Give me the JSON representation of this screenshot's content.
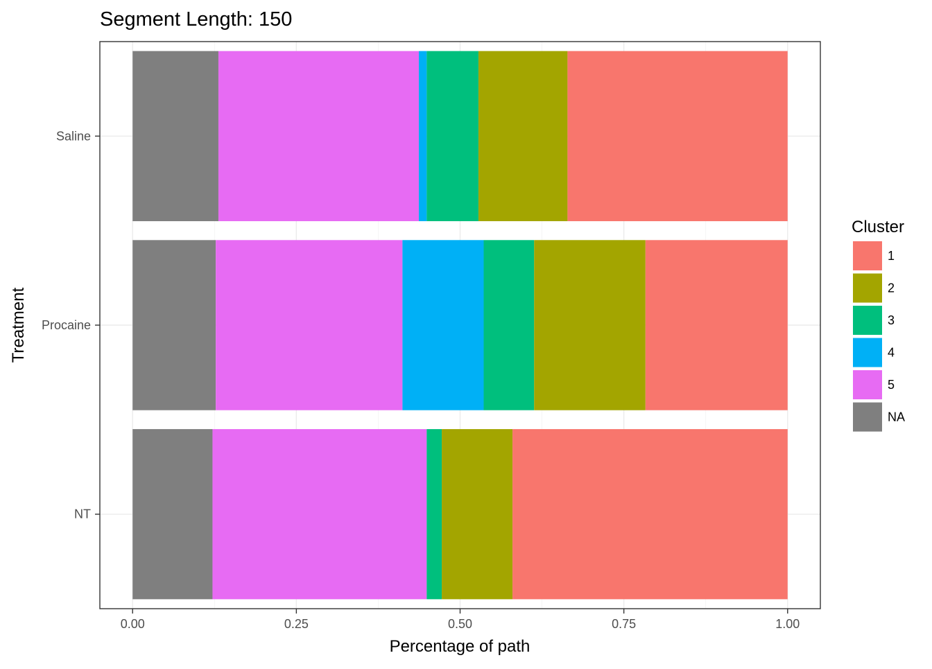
{
  "chart_data": {
    "type": "bar",
    "orientation": "horizontal",
    "stacked": true,
    "title": "Segment Length: 150",
    "xlabel": "Percentage of path",
    "ylabel": "Treatment",
    "xlim": [
      -0.05,
      1.05
    ],
    "x_ticks": [
      0,
      0.25,
      0.5,
      0.75,
      1.0
    ],
    "x_tick_labels": [
      "0.00",
      "0.25",
      "0.50",
      "0.75",
      "1.00"
    ],
    "categories": [
      "NT",
      "Procaine",
      "Saline"
    ],
    "stack_order": [
      "NA",
      "5",
      "4",
      "3",
      "2",
      "1"
    ],
    "series": [
      {
        "name": "1",
        "color": "#F8766D",
        "values": [
          0.42,
          0.217,
          0.336
        ]
      },
      {
        "name": "2",
        "color": "#A3A500",
        "values": [
          0.108,
          0.17,
          0.136
        ]
      },
      {
        "name": "3",
        "color": "#00BF7D",
        "values": [
          0.023,
          0.077,
          0.079
        ]
      },
      {
        "name": "4",
        "color": "#00B0F6",
        "values": [
          0.0,
          0.124,
          0.012
        ]
      },
      {
        "name": "5",
        "color": "#E76BF3",
        "values": [
          0.327,
          0.285,
          0.306
        ]
      },
      {
        "name": "NA",
        "color": "#7F7F7F",
        "values": [
          0.122,
          0.127,
          0.131
        ]
      }
    ],
    "legend": {
      "title": "Cluster",
      "position": "right",
      "items": [
        "1",
        "2",
        "3",
        "4",
        "5",
        "NA"
      ]
    },
    "grid": true
  }
}
